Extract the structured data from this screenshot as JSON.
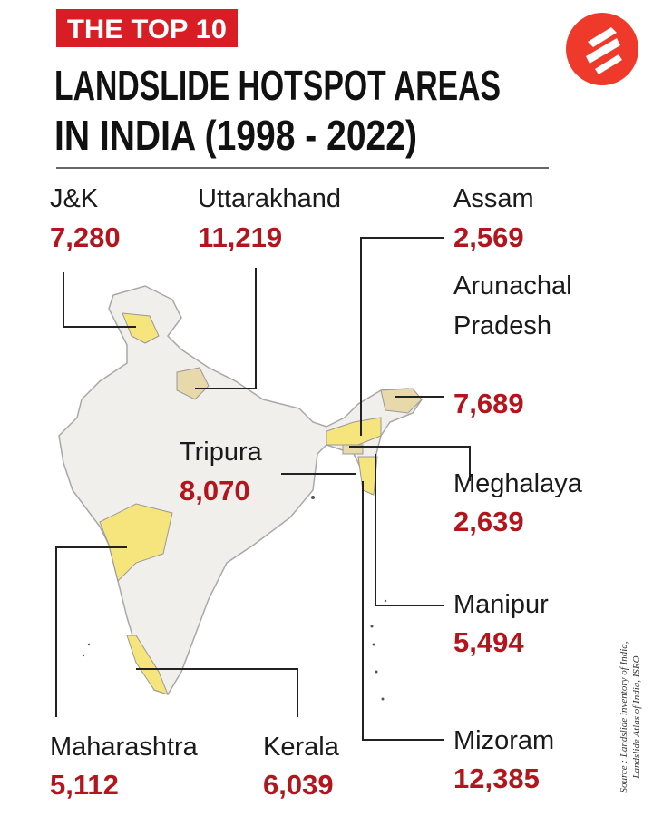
{
  "header": {
    "tag": "THE TOP 10",
    "title_lines": [
      "LANDSLIDE HOTSPOT AREAS",
      "IN INDIA (1998 - 2022)"
    ]
  },
  "regions": [
    {
      "name": "J&K",
      "value": "7,280"
    },
    {
      "name": "Uttarakhand",
      "value": "11,219"
    },
    {
      "name": "Assam",
      "value": "2,569"
    },
    {
      "name": "Arunachal Pradesh",
      "value": "7,689"
    },
    {
      "name": "Tripura",
      "value": "8,070"
    },
    {
      "name": "Meghalaya",
      "value": "2,639"
    },
    {
      "name": "Manipur",
      "value": "5,494"
    },
    {
      "name": "Maharashtra",
      "value": "5,112"
    },
    {
      "name": "Kerala",
      "value": "6,039"
    },
    {
      "name": "Mizoram",
      "value": "12,385"
    }
  ],
  "source_lines": [
    "Source : Landslide inventory of India,",
    "Landslide Atlas of India, ISRO"
  ]
}
